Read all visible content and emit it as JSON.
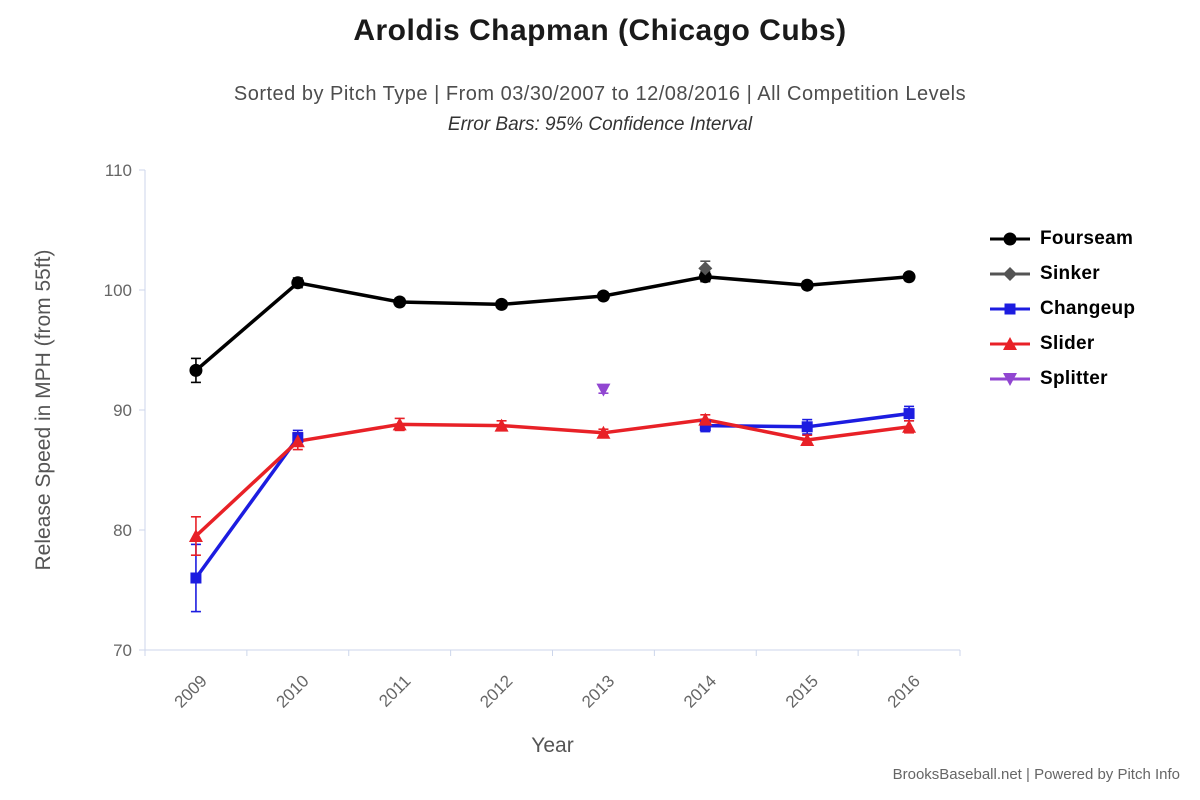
{
  "header": {
    "title": "Aroldis Chapman (Chicago Cubs)",
    "subtitle": "Sorted by Pitch Type | From 03/30/2007 to 12/08/2016 | All Competition Levels",
    "note": "Error Bars: 95% Confidence Interval"
  },
  "footer": {
    "credits": "BrooksBaseball.net | Powered by Pitch Info"
  },
  "chart_data": {
    "type": "line",
    "title": "Aroldis Chapman (Chicago Cubs)",
    "xlabel": "Year",
    "ylabel": "Release Speed in MPH (from 55ft)",
    "ylim": [
      70,
      110
    ],
    "yticks": [
      70,
      80,
      90,
      100,
      110
    ],
    "categories": [
      "2009",
      "2010",
      "2011",
      "2012",
      "2013",
      "2014",
      "2015",
      "2016"
    ],
    "legend_position": "right",
    "grid": false,
    "axis_color": "#ccd6eb",
    "tick_label_color": "#666666",
    "error_bars": "95% Confidence Interval",
    "series": [
      {
        "name": "Fourseam",
        "color": "#000000",
        "marker": "circle",
        "values": [
          93.3,
          100.6,
          99.0,
          98.8,
          99.5,
          101.1,
          100.4,
          101.1
        ],
        "errors": [
          1.0,
          0.4,
          0.3,
          0.3,
          0.3,
          0.4,
          0.3,
          0.3
        ]
      },
      {
        "name": "Sinker",
        "color": "#545454",
        "marker": "diamond",
        "values": [
          null,
          null,
          null,
          null,
          null,
          101.8,
          null,
          null
        ],
        "errors": [
          null,
          null,
          null,
          null,
          null,
          0.6,
          null,
          null
        ]
      },
      {
        "name": "Changeup",
        "color": "#1c1ce0",
        "marker": "square",
        "values": [
          76.0,
          87.7,
          null,
          null,
          null,
          88.7,
          88.6,
          89.7
        ],
        "errors": [
          2.8,
          0.6,
          null,
          null,
          null,
          0.5,
          0.6,
          0.6
        ]
      },
      {
        "name": "Slider",
        "color": "#e82127",
        "marker": "triangle-up",
        "values": [
          79.5,
          87.4,
          88.8,
          88.7,
          88.1,
          89.2,
          87.5,
          88.6
        ],
        "errors": [
          1.6,
          0.7,
          0.5,
          0.4,
          0.3,
          0.4,
          0.4,
          0.5
        ]
      },
      {
        "name": "Splitter",
        "color": "#9146d1",
        "marker": "triangle-down",
        "values": [
          null,
          null,
          null,
          null,
          91.7,
          null,
          null,
          null
        ],
        "errors": [
          null,
          null,
          null,
          null,
          0.3,
          null,
          null,
          null
        ]
      }
    ]
  }
}
